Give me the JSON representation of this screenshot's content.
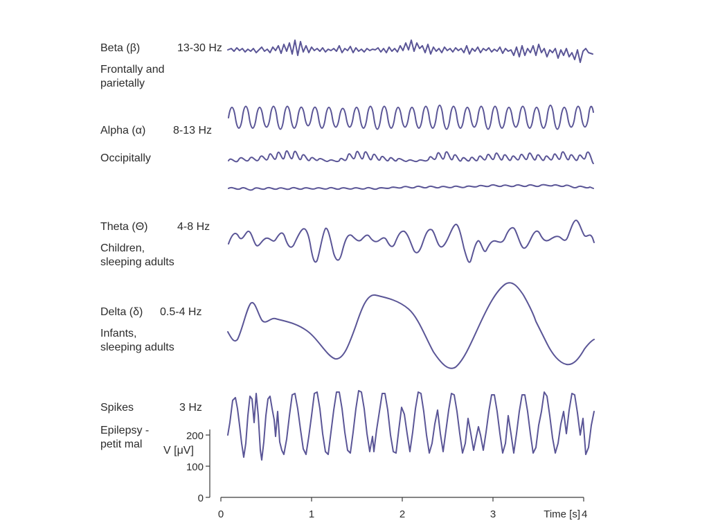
{
  "bands": [
    {
      "name": "Beta (β)",
      "freq": "13-30 Hz",
      "desc": [
        "Frontally and",
        "parietally"
      ]
    },
    {
      "name": "Alpha (α)",
      "freq": "8-13 Hz",
      "desc": [
        "Occipitally"
      ]
    },
    {
      "name": "Theta (Θ)",
      "freq": "4-8 Hz",
      "desc": [
        "Children,",
        "sleeping adults"
      ]
    },
    {
      "name": "Delta (δ)",
      "freq": "0.5-4 Hz",
      "desc": [
        "Infants,",
        "sleeping adults"
      ]
    },
    {
      "name": "Spikes",
      "freq": "3 Hz",
      "desc": [
        "Epilepsy -",
        "petit mal"
      ]
    }
  ],
  "axes": {
    "y_label": "V [μV]",
    "y_ticks": [
      "200",
      "100",
      "0"
    ],
    "x_label": "Time [s]",
    "x_ticks": [
      "0",
      "1",
      "2",
      "3",
      "4"
    ]
  },
  "colors": {
    "trace": "#5a5596",
    "axis": "#3a3a3a",
    "text": "#2b2b2b"
  }
}
